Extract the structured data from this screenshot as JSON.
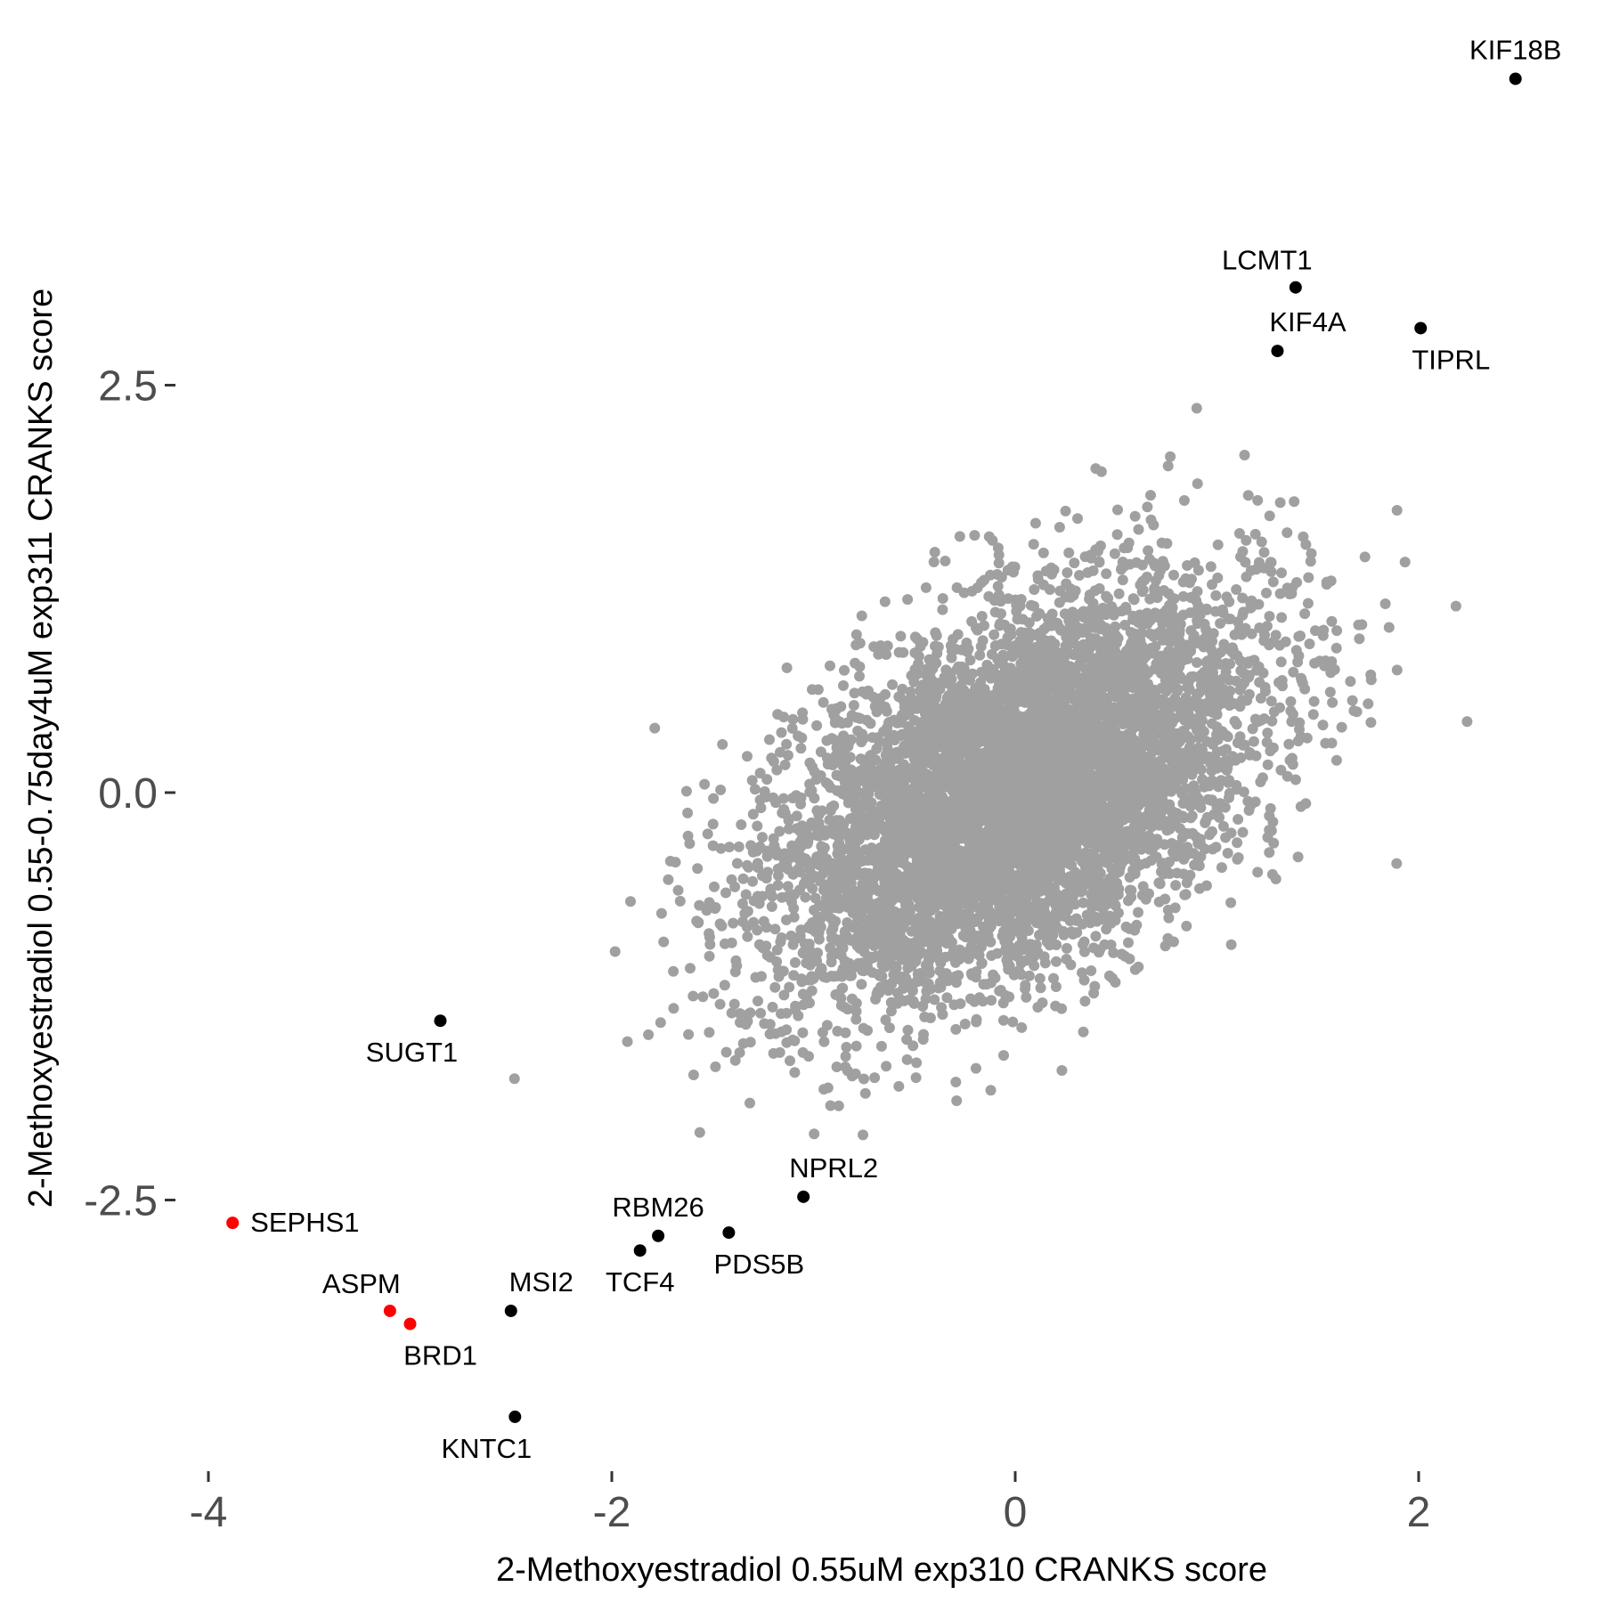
{
  "chart_data": {
    "type": "scatter",
    "title": "",
    "xlabel": "2-Methoxyestradiol 0.55uM exp310 CRANKS score",
    "ylabel": "2-Methoxyestradiol 0.55-0.75day4uM exp311 CRANKS score",
    "xlim": [
      -4.4,
      2.8
    ],
    "ylim": [
      -4.1,
      4.8
    ],
    "x_ticks": [
      {
        "value": -4,
        "label": "-4"
      },
      {
        "value": -2,
        "label": "-2"
      },
      {
        "value": 0,
        "label": "0"
      },
      {
        "value": 2,
        "label": "2"
      }
    ],
    "y_ticks": [
      {
        "value": 2.5,
        "label": "2.5"
      },
      {
        "value": 0.0,
        "label": "0.0"
      },
      {
        "value": -2.5,
        "label": "-2.5"
      }
    ],
    "grid": false,
    "legend": "none",
    "colors": {
      "background_points": "#a0a0a0",
      "highlight": "#000000",
      "hit": "#ff0000"
    },
    "background_cloud": {
      "approximate_correlation": 0.5,
      "x_center": 0,
      "y_center": 0,
      "x_sd": 0.6,
      "y_sd": 0.62
    },
    "highlighted_points": [
      {
        "gene": "KIF18B",
        "x": 2.48,
        "y": 4.38,
        "color": "#000000",
        "label_pos": "top"
      },
      {
        "gene": "LCMT1",
        "x": 1.39,
        "y": 3.1,
        "color": "#000000",
        "label_pos": "top-left"
      },
      {
        "gene": "KIF4A",
        "x": 1.3,
        "y": 2.71,
        "color": "#000000",
        "label_pos": "top-right"
      },
      {
        "gene": "TIPRL",
        "x": 2.01,
        "y": 2.85,
        "color": "#000000",
        "label_pos": "bottom-right"
      },
      {
        "gene": "SUGT1",
        "x": -2.85,
        "y": -1.4,
        "color": "#000000",
        "label_pos": "bottom-left"
      },
      {
        "gene": "NPRL2",
        "x": -1.05,
        "y": -2.48,
        "color": "#000000",
        "label_pos": "top-right"
      },
      {
        "gene": "RBM26",
        "x": -1.77,
        "y": -2.72,
        "color": "#000000",
        "label_pos": "top"
      },
      {
        "gene": "PDS5B",
        "x": -1.42,
        "y": -2.7,
        "color": "#000000",
        "label_pos": "bottom-right"
      },
      {
        "gene": "TCF4",
        "x": -1.86,
        "y": -2.81,
        "color": "#000000",
        "label_pos": "bottom"
      },
      {
        "gene": "MSI2",
        "x": -2.5,
        "y": -3.18,
        "color": "#000000",
        "label_pos": "top-right"
      },
      {
        "gene": "KNTC1",
        "x": -2.48,
        "y": -3.83,
        "color": "#000000",
        "label_pos": "bottom-left"
      },
      {
        "gene": "SEPHS1",
        "x": -3.88,
        "y": -2.64,
        "color": "#ff0000",
        "label_pos": "right"
      },
      {
        "gene": "ASPM",
        "x": -3.1,
        "y": -3.18,
        "color": "#ff0000",
        "label_pos": "top-left"
      },
      {
        "gene": "BRD1",
        "x": -3.0,
        "y": -3.26,
        "color": "#ff0000",
        "label_pos": "bottom-right"
      }
    ]
  }
}
